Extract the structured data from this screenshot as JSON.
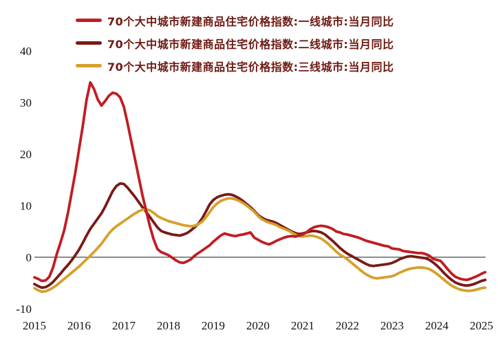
{
  "chart_data": {
    "type": "line",
    "title": "",
    "frequency": "monthly",
    "x_start": "2015-01",
    "x_end": "2025-02",
    "grid": false,
    "zero_line": true,
    "legend_position": "top-left",
    "x_axis": {
      "ticks": [
        "2015",
        "2016",
        "2017",
        "2018",
        "2019",
        "2020",
        "2021",
        "2022",
        "2023",
        "2024",
        "2025"
      ]
    },
    "y_axis": {
      "ticks": [
        40,
        30,
        20,
        10,
        0,
        -10
      ],
      "ylim": [
        -10,
        42
      ]
    },
    "colors": {
      "legend_text": "#6E1A13",
      "axis_text": "#111111",
      "zero_line": "#1a1a1a",
      "background": "#ffffff"
    },
    "series": [
      {
        "id": "tier1",
        "name": "70个大中城市新建商品住宅价格指数:一线城市:当月同比",
        "color": "#C01D23",
        "values": [
          -3.9,
          -4.2,
          -4.6,
          -4.5,
          -3.8,
          -2.0,
          0.6,
          2.8,
          5.2,
          8.6,
          12.5,
          16.5,
          21.0,
          25.5,
          30.5,
          33.9,
          32.6,
          30.6,
          29.4,
          30.3,
          31.3,
          31.9,
          31.7,
          31.0,
          29.2,
          26.0,
          22.5,
          19.0,
          15.5,
          12.0,
          9.0,
          6.0,
          3.5,
          1.6,
          1.0,
          0.7,
          0.4,
          -0.1,
          -0.6,
          -1.0,
          -1.1,
          -0.8,
          -0.4,
          0.3,
          0.8,
          1.3,
          1.8,
          2.3,
          3.0,
          3.6,
          4.2,
          4.6,
          4.4,
          4.2,
          4.1,
          4.3,
          4.4,
          4.6,
          4.8,
          3.8,
          3.4,
          3.0,
          2.7,
          2.5,
          2.8,
          3.2,
          3.5,
          3.8,
          4.0,
          4.1,
          4.0,
          4.2,
          4.4,
          4.8,
          5.4,
          5.8,
          6.0,
          6.1,
          6.0,
          5.8,
          5.5,
          5.0,
          4.8,
          4.5,
          4.4,
          4.2,
          4.0,
          3.8,
          3.5,
          3.2,
          3.0,
          2.8,
          2.6,
          2.4,
          2.2,
          2.1,
          1.7,
          1.6,
          1.5,
          1.2,
          1.1,
          1.0,
          0.9,
          0.8,
          0.8,
          0.6,
          0.3,
          -0.3,
          -0.5,
          -0.7,
          -1.5,
          -2.4,
          -3.2,
          -3.8,
          -4.1,
          -4.3,
          -4.4,
          -4.2,
          -3.9,
          -3.6,
          -3.2,
          -2.9
        ]
      },
      {
        "id": "tier2",
        "name": "70个大中城市新建商品住宅价格指数:二线城市:当月同比",
        "color": "#7A1A15",
        "values": [
          -5.2,
          -5.6,
          -5.9,
          -5.8,
          -5.4,
          -4.8,
          -4.0,
          -3.2,
          -2.3,
          -1.5,
          -0.6,
          0.4,
          1.5,
          2.8,
          4.2,
          5.5,
          6.5,
          7.5,
          8.5,
          9.8,
          11.3,
          12.8,
          13.8,
          14.3,
          14.2,
          13.5,
          12.6,
          11.7,
          10.7,
          9.7,
          8.8,
          7.8,
          6.8,
          5.8,
          5.1,
          4.8,
          4.6,
          4.4,
          4.3,
          4.2,
          4.4,
          4.7,
          5.2,
          5.8,
          6.5,
          7.5,
          8.8,
          10.2,
          11.1,
          11.6,
          11.9,
          12.1,
          12.2,
          12.1,
          11.8,
          11.4,
          10.9,
          10.3,
          9.7,
          9.0,
          8.2,
          7.7,
          7.3,
          7.1,
          6.9,
          6.6,
          6.2,
          5.8,
          5.4,
          5.0,
          4.7,
          4.5,
          4.6,
          4.8,
          5.0,
          5.1,
          5.0,
          4.8,
          4.4,
          3.8,
          3.2,
          2.5,
          1.8,
          1.2,
          0.7,
          0.3,
          -0.1,
          -0.5,
          -0.9,
          -1.3,
          -1.6,
          -1.7,
          -1.6,
          -1.5,
          -1.4,
          -1.3,
          -1.1,
          -0.8,
          -0.4,
          -0.1,
          0.1,
          0.2,
          0.1,
          0.0,
          -0.1,
          -0.2,
          -0.5,
          -1.0,
          -1.6,
          -2.3,
          -3.1,
          -3.8,
          -4.4,
          -4.9,
          -5.2,
          -5.4,
          -5.5,
          -5.4,
          -5.2,
          -4.9,
          -4.6,
          -4.4
        ]
      },
      {
        "id": "tier3",
        "name": "70个大中城市新建商品住宅价格指数:三线城市:当月同比",
        "color": "#D5A02C",
        "values": [
          -6.0,
          -6.4,
          -6.7,
          -6.6,
          -6.3,
          -5.9,
          -5.4,
          -4.8,
          -4.2,
          -3.6,
          -3.0,
          -2.4,
          -1.8,
          -1.1,
          -0.4,
          0.3,
          1.0,
          1.8,
          2.6,
          3.6,
          4.6,
          5.4,
          6.0,
          6.5,
          7.0,
          7.5,
          8.0,
          8.5,
          8.9,
          9.2,
          9.3,
          9.1,
          8.6,
          8.0,
          7.6,
          7.3,
          7.0,
          6.8,
          6.6,
          6.4,
          6.2,
          6.1,
          6.0,
          6.1,
          6.4,
          6.9,
          7.7,
          8.7,
          9.7,
          10.4,
          10.9,
          11.2,
          11.4,
          11.4,
          11.2,
          10.9,
          10.5,
          10.0,
          9.4,
          8.8,
          8.0,
          7.4,
          7.0,
          6.7,
          6.5,
          6.2,
          5.8,
          5.5,
          5.2,
          4.8,
          4.4,
          4.1,
          4.0,
          4.1,
          4.2,
          4.1,
          3.9,
          3.6,
          3.1,
          2.5,
          1.8,
          1.1,
          0.5,
          0.1,
          -0.4,
          -1.0,
          -1.6,
          -2.2,
          -2.8,
          -3.3,
          -3.7,
          -4.0,
          -4.1,
          -4.0,
          -3.9,
          -3.8,
          -3.7,
          -3.4,
          -3.0,
          -2.7,
          -2.4,
          -2.2,
          -2.1,
          -2.0,
          -2.0,
          -2.1,
          -2.3,
          -2.7,
          -3.2,
          -3.8,
          -4.4,
          -5.0,
          -5.5,
          -5.9,
          -6.2,
          -6.4,
          -6.5,
          -6.5,
          -6.4,
          -6.2,
          -6.0,
          -5.9
        ]
      }
    ]
  }
}
